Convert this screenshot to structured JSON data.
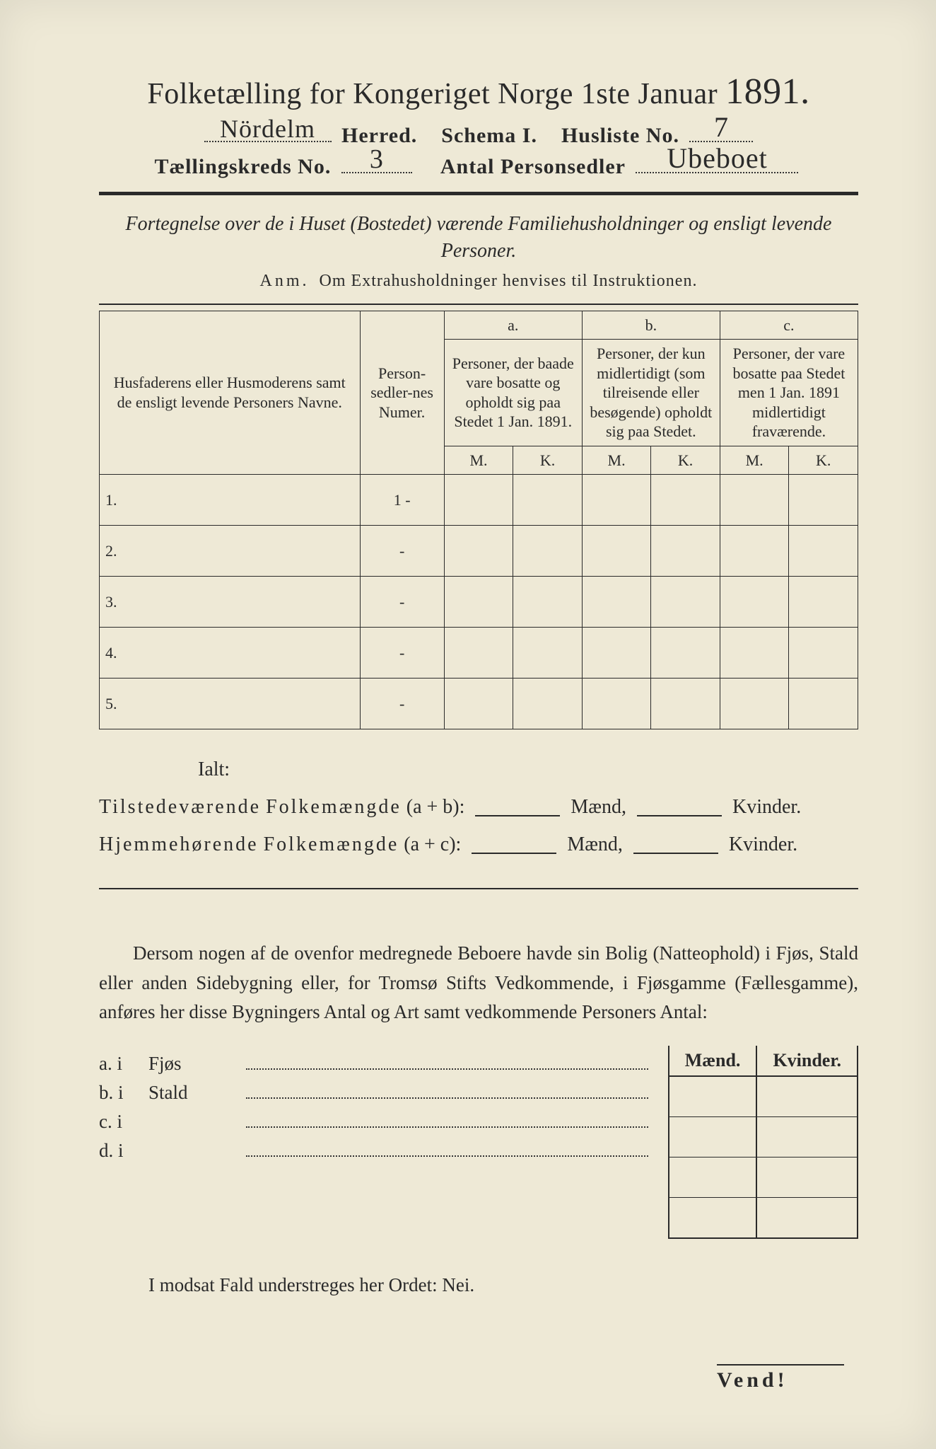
{
  "title": {
    "main": "Folketælling for Kongeriget Norge 1ste Januar",
    "year": "1891."
  },
  "header": {
    "herred_hw": "Nördelm",
    "herred_label": "Herred.",
    "schema_label": "Schema I.",
    "husliste_label": "Husliste No.",
    "husliste_hw": "7",
    "kreds_label": "Tællingskreds No.",
    "kreds_hw": "3",
    "personsedler_label": "Antal Personsedler",
    "personsedler_hw": "Ubeboet"
  },
  "subtitle": "Fortegnelse over de i Huset (Bostedet) værende Familiehusholdninger og ensligt levende Personer.",
  "anm": {
    "prefix": "Anm.",
    "text": "Om Extrahusholdninger henvises til Instruktionen."
  },
  "table": {
    "col_names": "Husfaderens eller Husmoderens samt de ensligt levende Personers Navne.",
    "col_num": "Person-sedler-nes Numer.",
    "col_a_lab": "a.",
    "col_a": "Personer, der baade vare bosatte og opholdt sig paa Stedet 1 Jan. 1891.",
    "col_b_lab": "b.",
    "col_b": "Personer, der kun midlertidigt (som tilreisende eller besøgende) opholdt sig paa Stedet.",
    "col_c_lab": "c.",
    "col_c": "Personer, der vare bosatte paa Stedet men 1 Jan. 1891 midlertidigt fraværende.",
    "mk_m": "M.",
    "mk_k": "K.",
    "rows": [
      {
        "n": "1.",
        "num": "1 -"
      },
      {
        "n": "2.",
        "num": "-"
      },
      {
        "n": "3.",
        "num": "-"
      },
      {
        "n": "4.",
        "num": "-"
      },
      {
        "n": "5.",
        "num": "-"
      }
    ]
  },
  "totals": {
    "ialt": "Ialt:",
    "line1_a": "Tilstedeværende",
    "line_mid": "Folkemængde",
    "line1_expr": "(a + b):",
    "line2_a": "Hjemmehørende",
    "line2_expr": "(a + c):",
    "maend": "Mænd,",
    "kvinder": "Kvinder."
  },
  "paragraph": "Dersom nogen af de ovenfor medregnede Beboere havde sin Bolig (Natteophold) i Fjøs, Stald eller anden Sidebygning eller, for Tromsø Stifts Vedkommende, i Fjøsgamme (Fællesgamme), anføres her disse Bygningers Antal og Art samt vedkommende Personers Antal:",
  "lower": {
    "mk_m": "Mænd.",
    "mk_k": "Kvinder.",
    "rows": [
      {
        "lab": "a.  i",
        "lab2": "Fjøs"
      },
      {
        "lab": "b.  i",
        "lab2": "Stald"
      },
      {
        "lab": "c.  i",
        "lab2": ""
      },
      {
        "lab": "d.  i",
        "lab2": ""
      }
    ]
  },
  "nei": "I modsat Fald understreges her Ordet: Nei.",
  "vend": "Vend!"
}
